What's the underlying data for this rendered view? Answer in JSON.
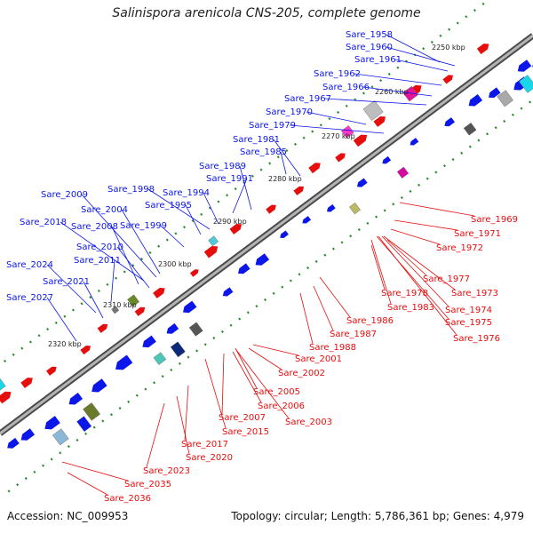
{
  "title": "Salinispora arenicola CNS-205, complete genome",
  "footer": {
    "accession": "Accession: NC_009953",
    "summary": "Topology: circular; Length: 5,786,361 bp; Genes: 4,979"
  },
  "colors": {
    "forward": "#0b16e8",
    "reverse": "#e60d0d",
    "backbone": "#8f8f8f",
    "tick": "#2a8a2a"
  },
  "kbp_labels": [
    "2250 kbp",
    "2260 kbp",
    "2270 kbp",
    "2280 kbp",
    "2290 kbp",
    "2300 kbp",
    "2310 kbp",
    "2320 kbp"
  ],
  "forward_genes": [
    "Sare_1958",
    "Sare_1960",
    "Sare_1961",
    "Sare_1962",
    "Sare_1966",
    "Sare_1967",
    "Sare_1970",
    "Sare_1979",
    "Sare_1981",
    "Sare_1985",
    "Sare_1989",
    "Sare_1991",
    "Sare_1994",
    "Sare_1998",
    "Sare_1995",
    "Sare_2009",
    "Sare_2004",
    "Sare_1999",
    "Sare_2018",
    "Sare_2008",
    "Sare_2010",
    "Sare_2011",
    "Sare_2024",
    "Sare_2021",
    "Sare_2027"
  ],
  "reverse_genes": [
    "Sare_1969",
    "Sare_1971",
    "Sare_1972",
    "Sare_1977",
    "Sare_1973",
    "Sare_1978",
    "Sare_1983",
    "Sare_1974",
    "Sare_1975",
    "Sare_1986",
    "Sare_1976",
    "Sare_1987",
    "Sare_1988",
    "Sare_2001",
    "Sare_2002",
    "Sare_2005",
    "Sare_2006",
    "Sare_2007",
    "Sare_2003",
    "Sare_2015",
    "Sare_2017",
    "Sare_2020",
    "Sare_2023",
    "Sare_2035",
    "Sare_2036"
  ]
}
